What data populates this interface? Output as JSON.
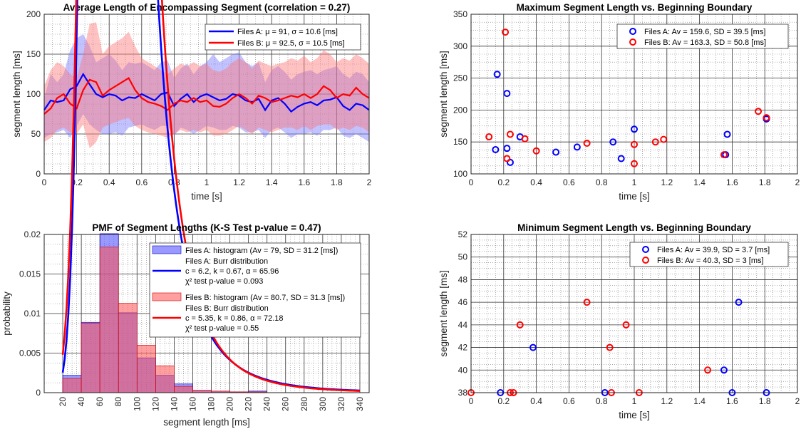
{
  "figure": {
    "background": "#ffffff"
  },
  "colors": {
    "files_a": "#0000ff",
    "files_b": "#ff0000",
    "band_a": "#7777ff",
    "band_b": "#ff7777",
    "overlap": "#c040a0"
  },
  "chart_data": [
    {
      "id": "avg",
      "type": "line",
      "title": "Average Length of Encompassing Segment (correlation = 0.27)",
      "xlabel": "time [s]",
      "ylabel": "segment length [ms]",
      "xlim": [
        0,
        2
      ],
      "ylim": [
        0,
        200
      ],
      "xticks": [
        0,
        0.2,
        0.4,
        0.6,
        0.8,
        1,
        1.2,
        1.4,
        1.6,
        1.8,
        2
      ],
      "yticks": [
        0,
        50,
        100,
        150,
        200
      ],
      "grid": true,
      "minor_grid": true,
      "legend_position": "top-right",
      "legend": [
        "Files A: μ = 91, σ = 10.6 [ms]",
        "Files B: μ = 92.5, σ = 10.5 [ms]"
      ],
      "series": [
        {
          "name": "Files A",
          "color": "#0000ff",
          "x": [
            0,
            0.04,
            0.08,
            0.12,
            0.16,
            0.2,
            0.24,
            0.28,
            0.32,
            0.36,
            0.4,
            0.44,
            0.48,
            0.52,
            0.56,
            0.6,
            0.64,
            0.68,
            0.72,
            0.76,
            0.8,
            0.84,
            0.88,
            0.92,
            0.96,
            1.0,
            1.04,
            1.08,
            1.12,
            1.16,
            1.2,
            1.24,
            1.28,
            1.32,
            1.36,
            1.4,
            1.44,
            1.48,
            1.52,
            1.56,
            1.6,
            1.64,
            1.68,
            1.72,
            1.76,
            1.8,
            1.84,
            1.88,
            1.92,
            1.96,
            2.0
          ],
          "mean": [
            80,
            92,
            90,
            92,
            106,
            110,
            125,
            112,
            100,
            96,
            100,
            98,
            92,
            96,
            95,
            100,
            96,
            92,
            100,
            102,
            85,
            94,
            100,
            90,
            97,
            100,
            96,
            92,
            94,
            100,
            98,
            92,
            90,
            94,
            80,
            92,
            95,
            88,
            78,
            84,
            88,
            90,
            86,
            92,
            93,
            96,
            85,
            80,
            88,
            86,
            80
          ],
          "low": [
            45,
            50,
            52,
            55,
            45,
            60,
            75,
            62,
            55,
            50,
            50,
            52,
            48,
            58,
            60,
            62,
            58,
            55,
            60,
            60,
            48,
            58,
            55,
            50,
            55,
            60,
            58,
            55,
            55,
            60,
            58,
            52,
            52,
            55,
            45,
            55,
            58,
            52,
            45,
            50,
            50,
            52,
            48,
            55,
            55,
            58,
            48,
            45,
            50,
            45,
            40
          ],
          "high": [
            95,
            125,
            115,
            125,
            155,
            170,
            175,
            160,
            140,
            145,
            150,
            142,
            130,
            140,
            138,
            140,
            135,
            130,
            140,
            142,
            120,
            132,
            138,
            125,
            135,
            140,
            150,
            140,
            145,
            150,
            152,
            140,
            135,
            140,
            115,
            130,
            135,
            128,
            118,
            125,
            128,
            130,
            125,
            130,
            132,
            135,
            125,
            120,
            128,
            125,
            115
          ]
        },
        {
          "name": "Files B",
          "color": "#ff0000",
          "x": [
            0,
            0.04,
            0.08,
            0.12,
            0.16,
            0.2,
            0.24,
            0.28,
            0.32,
            0.36,
            0.4,
            0.44,
            0.48,
            0.52,
            0.56,
            0.6,
            0.64,
            0.68,
            0.72,
            0.76,
            0.8,
            0.84,
            0.88,
            0.92,
            0.96,
            1.0,
            1.04,
            1.08,
            1.12,
            1.16,
            1.2,
            1.24,
            1.28,
            1.32,
            1.36,
            1.4,
            1.44,
            1.48,
            1.52,
            1.56,
            1.6,
            1.64,
            1.68,
            1.72,
            1.76,
            1.8,
            1.84,
            1.88,
            1.92,
            1.96,
            2.0
          ],
          "mean": [
            75,
            82,
            95,
            100,
            88,
            82,
            105,
            118,
            115,
            98,
            105,
            110,
            115,
            120,
            105,
            95,
            90,
            88,
            85,
            80,
            88,
            92,
            90,
            95,
            90,
            92,
            85,
            84,
            88,
            95,
            100,
            95,
            88,
            98,
            95,
            90,
            92,
            95,
            98,
            96,
            100,
            95,
            100,
            110,
            105,
            95,
            100,
            98,
            108,
            100,
            95
          ],
          "low": [
            40,
            45,
            55,
            58,
            52,
            50,
            62,
            32,
            40,
            58,
            62,
            65,
            68,
            70,
            60,
            55,
            52,
            50,
            48,
            45,
            50,
            55,
            52,
            55,
            52,
            55,
            48,
            48,
            50,
            55,
            60,
            55,
            50,
            58,
            55,
            52,
            55,
            58,
            58,
            55,
            60,
            55,
            60,
            62,
            62,
            55,
            58,
            55,
            60,
            58,
            52
          ],
          "high": [
            110,
            130,
            140,
            135,
            125,
            120,
            150,
            188,
            190,
            150,
            160,
            165,
            170,
            178,
            160,
            145,
            140,
            135,
            130,
            125,
            132,
            138,
            135,
            140,
            135,
            138,
            130,
            128,
            132,
            140,
            145,
            140,
            132,
            142,
            138,
            135,
            138,
            140,
            145,
            142,
            148,
            140,
            145,
            155,
            150,
            140,
            145,
            142,
            150,
            145,
            138
          ]
        }
      ]
    },
    {
      "id": "max",
      "type": "scatter",
      "title": "Maximum Segment Length vs. Beginning Boundary",
      "xlabel": "time [s]",
      "ylabel": "segment length [ms]",
      "xlim": [
        0,
        2
      ],
      "ylim": [
        100,
        350
      ],
      "xticks": [
        0,
        0.2,
        0.4,
        0.6,
        0.8,
        1,
        1.2,
        1.4,
        1.6,
        1.8,
        2
      ],
      "yticks": [
        100,
        150,
        200,
        250,
        300,
        350
      ],
      "grid": true,
      "minor_grid": true,
      "legend_position": "top-right",
      "legend": [
        "Files A: Av = 159.6, SD = 39.5 [ms]",
        "Files B: Av = 163.3, SD = 50.8 [ms]"
      ],
      "series": [
        {
          "name": "Files A",
          "color": "#0000ff",
          "points": [
            [
              0.16,
              256
            ],
            [
              0.22,
              226
            ],
            [
              0.3,
              158
            ],
            [
              0.15,
              138
            ],
            [
              0.22,
              140
            ],
            [
              0.24,
              118
            ],
            [
              0.52,
              134
            ],
            [
              0.65,
              142
            ],
            [
              0.87,
              150
            ],
            [
              0.92,
              124
            ],
            [
              1.0,
              170
            ],
            [
              1.57,
              162
            ],
            [
              1.56,
              130
            ],
            [
              1.81,
              186
            ]
          ]
        },
        {
          "name": "Files B",
          "color": "#ff0000",
          "points": [
            [
              0.11,
              158
            ],
            [
              0.21,
              322
            ],
            [
              0.24,
              162
            ],
            [
              0.22,
              124
            ],
            [
              0.33,
              155
            ],
            [
              0.4,
              136
            ],
            [
              0.71,
              148
            ],
            [
              1.0,
              146
            ],
            [
              1.0,
              116
            ],
            [
              1.13,
              150
            ],
            [
              1.18,
              154
            ],
            [
              1.55,
              130
            ],
            [
              1.76,
              198
            ],
            [
              1.81,
              188
            ]
          ]
        }
      ]
    },
    {
      "id": "pmf",
      "type": "bar",
      "title": "PMF of Segment Lengths (K-S Test p-value = 0.47)",
      "xlabel": "segment length [ms]",
      "ylabel": "probability",
      "xlim": [
        0,
        350
      ],
      "ylim": [
        0,
        0.02
      ],
      "xticks": [
        20,
        40,
        60,
        80,
        100,
        120,
        140,
        160,
        180,
        200,
        220,
        240,
        260,
        280,
        300,
        320,
        340
      ],
      "yticks": [
        0,
        0.005,
        0.01,
        0.015,
        0.02
      ],
      "ytick_labels": [
        "0",
        "0.005",
        "0.01",
        "0.015",
        "0.02"
      ],
      "grid": true,
      "minor_grid": true,
      "legend_position": "top-right",
      "bin_edges": [
        20,
        40,
        60,
        80,
        100,
        120,
        140,
        160,
        180,
        200,
        220,
        240
      ],
      "series": [
        {
          "name": "Files A",
          "color": "#0000ff",
          "hist": [
            0.0022,
            0.0089,
            0.0201,
            0.0101,
            0.0044,
            0.0022,
            0.0011,
            0.0003,
            0.0001,
            0.0001,
            0.0002
          ],
          "fit": {
            "c": 6.2,
            "k": 0.67,
            "alpha": 65.96
          },
          "legend_hist": "Files A: histogram (Av = 79, SD = 31.2 [ms])",
          "legend_fit_lines": [
            "Files A: Burr distribution",
            "c = 6.2, k = 0.67, α = 65.96",
            "χ² test p-value = 0.093"
          ]
        },
        {
          "name": "Files B",
          "color": "#ff0000",
          "hist": [
            0.0018,
            0.0088,
            0.0184,
            0.0113,
            0.006,
            0.0034,
            0.0008,
            0.0003,
            0.0002,
            0.0001,
            0.0001
          ],
          "fit": {
            "c": 5.35,
            "k": 0.86,
            "alpha": 72.18
          },
          "legend_hist": "Files B: histogram (Av = 80.7, SD = 31.3 [ms])",
          "legend_fit_lines": [
            "Files B: Burr distribution",
            "c = 5.35, k = 0.86, α = 72.18",
            "χ² test p-value = 0.55"
          ]
        }
      ]
    },
    {
      "id": "min",
      "type": "scatter",
      "title": "Minimum Segment Length vs. Beginning Boundary",
      "xlabel": "time [s]",
      "ylabel": "segment length [ms]",
      "xlim": [
        0,
        2
      ],
      "ylim": [
        38,
        52
      ],
      "xticks": [
        0,
        0.2,
        0.4,
        0.6,
        0.8,
        1,
        1.2,
        1.4,
        1.6,
        1.8,
        2
      ],
      "yticks": [
        38,
        40,
        42,
        44,
        46,
        48,
        50,
        52
      ],
      "grid": true,
      "minor_grid": true,
      "legend_position": "top-right",
      "legend": [
        "Files A: Av = 39.9, SD = 3.7 [ms]",
        "Files B: Av = 40.3, SD = 3 [ms]"
      ],
      "series": [
        {
          "name": "Files A",
          "color": "#0000ff",
          "points": [
            [
              0.18,
              38
            ],
            [
              0.38,
              42
            ],
            [
              0.82,
              38
            ],
            [
              1.55,
              40
            ],
            [
              1.6,
              38
            ],
            [
              1.64,
              46
            ],
            [
              1.81,
              38
            ]
          ]
        },
        {
          "name": "Files B",
          "color": "#ff0000",
          "points": [
            [
              0.0,
              38
            ],
            [
              0.24,
              38
            ],
            [
              0.26,
              38
            ],
            [
              0.3,
              44
            ],
            [
              0.71,
              46
            ],
            [
              0.85,
              42
            ],
            [
              0.86,
              38
            ],
            [
              0.95,
              44
            ],
            [
              1.03,
              38
            ],
            [
              1.45,
              40
            ]
          ]
        }
      ]
    }
  ]
}
